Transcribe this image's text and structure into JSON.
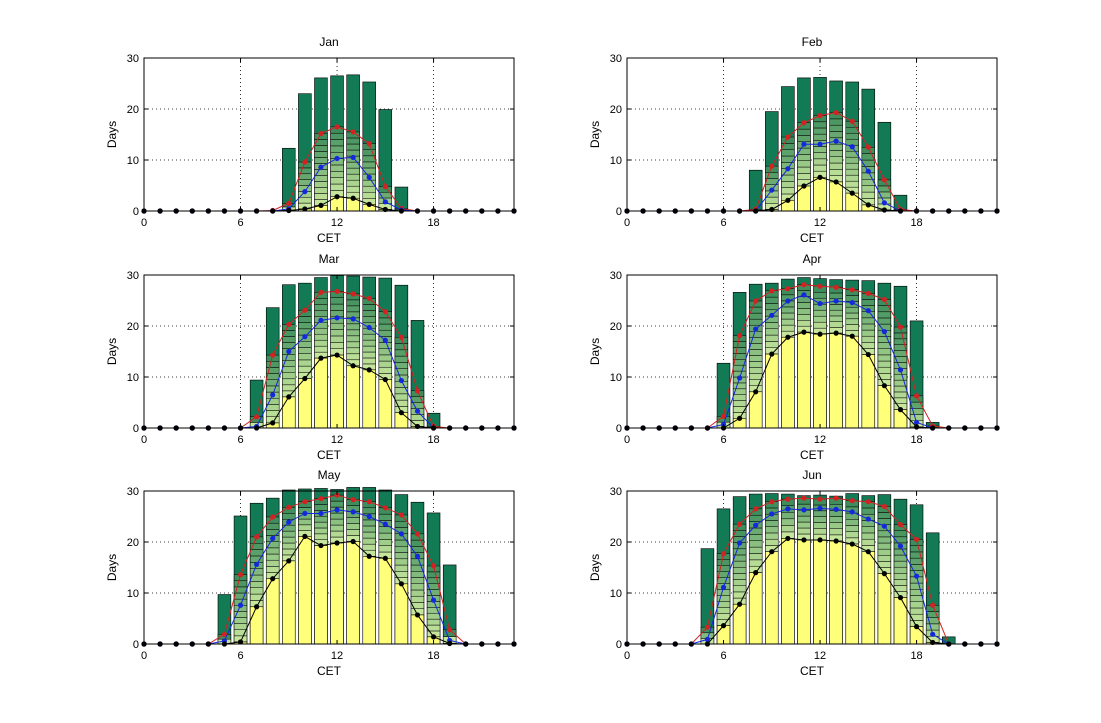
{
  "figure": {
    "xlabel": "CET",
    "ylabel": "Days",
    "xticks": [
      0,
      6,
      12,
      18
    ],
    "yticks": [
      0,
      10,
      20,
      30
    ]
  },
  "colors": {
    "bar_outer": "#127A55",
    "bar_outer_edge": "#000000",
    "band_light": "#C6E69C",
    "band_mid": "#7FB96E",
    "band_dark": "#3E8E5D",
    "bar_inner": "#FFFF7A",
    "line_red": "#D22222",
    "line_blue": "#1428DC",
    "line_black": "#000000"
  },
  "chart_data": [
    {
      "type": "bar",
      "title": "Jan",
      "xlim": [
        0,
        23
      ],
      "ylim": [
        0,
        30
      ],
      "x": [
        0,
        1,
        2,
        3,
        4,
        5,
        6,
        7,
        8,
        9,
        10,
        11,
        12,
        13,
        14,
        15,
        16,
        17,
        18,
        19,
        20,
        21,
        22,
        23
      ],
      "series": [
        {
          "values": [
            0,
            0,
            0,
            0,
            0,
            0,
            0,
            0,
            0,
            12.3,
            23,
            26.1,
            26.5,
            26.7,
            25.3,
            19.9,
            4.7,
            0,
            0,
            0,
            0,
            0,
            0,
            0
          ]
        },
        {
          "values": [
            0,
            0,
            0,
            0,
            0,
            0,
            0,
            0,
            0.1,
            1.5,
            9.6,
            15.2,
            16.5,
            15.5,
            13.2,
            4.8,
            0.5,
            0,
            0,
            0,
            0,
            0,
            0,
            0
          ]
        },
        {
          "values": [
            0,
            0,
            0,
            0,
            0,
            0,
            0,
            0,
            0,
            0.4,
            3.8,
            8.6,
            10.3,
            10.5,
            6.6,
            1.8,
            0.2,
            0,
            0,
            0,
            0,
            0,
            0,
            0
          ]
        },
        {
          "values": [
            0,
            0,
            0,
            0,
            0,
            0,
            0,
            0,
            0,
            0.1,
            0.4,
            1.1,
            2.8,
            2.5,
            1.3,
            0.3,
            0,
            0,
            0,
            0,
            0,
            0,
            0,
            0
          ]
        }
      ]
    },
    {
      "type": "bar",
      "title": "Feb",
      "xlim": [
        0,
        23
      ],
      "ylim": [
        0,
        30
      ],
      "x": [
        0,
        1,
        2,
        3,
        4,
        5,
        6,
        7,
        8,
        9,
        10,
        11,
        12,
        13,
        14,
        15,
        16,
        17,
        18,
        19,
        20,
        21,
        22,
        23
      ],
      "series": [
        {
          "values": [
            0,
            0,
            0,
            0,
            0,
            0,
            0,
            0,
            8,
            19.5,
            24.4,
            26.1,
            26.2,
            25.5,
            25.3,
            23.9,
            17.4,
            3.1,
            0,
            0,
            0,
            0,
            0,
            0
          ]
        },
        {
          "values": [
            0,
            0,
            0,
            0,
            0,
            0,
            0,
            0,
            0.3,
            8.8,
            14.5,
            17.3,
            18.7,
            19.3,
            17.6,
            12.5,
            6.1,
            0.3,
            0,
            0,
            0,
            0,
            0,
            0
          ]
        },
        {
          "values": [
            0,
            0,
            0,
            0,
            0,
            0,
            0,
            0,
            0,
            4.1,
            8.3,
            13.1,
            13.1,
            13.7,
            12.6,
            7.8,
            1.6,
            0,
            0,
            0,
            0,
            0,
            0,
            0
          ]
        },
        {
          "values": [
            0,
            0,
            0,
            0,
            0,
            0,
            0,
            0,
            0,
            0.3,
            2.1,
            4.9,
            6.6,
            5.7,
            3.5,
            1.2,
            0.2,
            0,
            0,
            0,
            0,
            0,
            0,
            0
          ]
        }
      ]
    },
    {
      "type": "bar",
      "title": "Mar",
      "xlim": [
        0,
        23
      ],
      "ylim": [
        0,
        30
      ],
      "x": [
        0,
        1,
        2,
        3,
        4,
        5,
        6,
        7,
        8,
        9,
        10,
        11,
        12,
        13,
        14,
        15,
        16,
        17,
        18,
        19,
        20,
        21,
        22,
        23
      ],
      "series": [
        {
          "values": [
            0,
            0,
            0,
            0,
            0,
            0,
            0,
            9.4,
            23.6,
            28.1,
            28.4,
            29.5,
            29.9,
            29.8,
            29.6,
            29.4,
            28,
            21.1,
            2.9,
            0,
            0,
            0,
            0,
            0
          ]
        },
        {
          "values": [
            0,
            0,
            0,
            0,
            0,
            0,
            0,
            2.2,
            14.3,
            20.3,
            23.1,
            26.6,
            26.8,
            26.3,
            25.4,
            22.8,
            17.8,
            7.3,
            0.3,
            0,
            0,
            0,
            0,
            0
          ]
        },
        {
          "values": [
            0,
            0,
            0,
            0,
            0,
            0,
            0,
            0.3,
            6.5,
            15,
            17.9,
            21.1,
            21.6,
            21.4,
            19.7,
            17.2,
            9.3,
            3.3,
            0,
            0,
            0,
            0,
            0,
            0
          ]
        },
        {
          "values": [
            0,
            0,
            0,
            0,
            0,
            0,
            0,
            0,
            1,
            6.1,
            9.7,
            13.7,
            14.3,
            12.2,
            11.4,
            9.5,
            3,
            0.3,
            0,
            0,
            0,
            0,
            0,
            0
          ]
        }
      ]
    },
    {
      "type": "bar",
      "title": "Apr",
      "xlim": [
        0,
        23
      ],
      "ylim": [
        0,
        30
      ],
      "x": [
        0,
        1,
        2,
        3,
        4,
        5,
        6,
        7,
        8,
        9,
        10,
        11,
        12,
        13,
        14,
        15,
        16,
        17,
        18,
        19,
        20,
        21,
        22,
        23
      ],
      "series": [
        {
          "values": [
            0,
            0,
            0,
            0,
            0,
            0,
            12.7,
            26.6,
            28.2,
            28.4,
            29.2,
            29.5,
            29.3,
            29.1,
            29,
            28.9,
            28.4,
            27.8,
            21,
            1.1,
            0,
            0,
            0,
            0
          ]
        },
        {
          "values": [
            0,
            0,
            0,
            0,
            0,
            0,
            2.3,
            18.1,
            24.9,
            26.9,
            27.3,
            28.1,
            27.8,
            27.6,
            27.1,
            26.4,
            25.2,
            19.8,
            6.3,
            0.4,
            0,
            0,
            0,
            0
          ]
        },
        {
          "values": [
            0,
            0,
            0,
            0,
            0,
            0,
            0.7,
            9.8,
            19.4,
            22.1,
            24.9,
            26.1,
            24.4,
            24.9,
            24.6,
            23,
            18.9,
            11.4,
            1.1,
            0,
            0,
            0,
            0,
            0
          ]
        },
        {
          "values": [
            0,
            0,
            0,
            0,
            0,
            0,
            0,
            1.9,
            7.1,
            14.5,
            17.8,
            18.8,
            18.4,
            18.6,
            18,
            14.4,
            8.3,
            3.6,
            0.2,
            0,
            0,
            0,
            0,
            0
          ]
        }
      ]
    },
    {
      "type": "bar",
      "title": "May",
      "xlim": [
        0,
        23
      ],
      "ylim": [
        0,
        30
      ],
      "x": [
        0,
        1,
        2,
        3,
        4,
        5,
        6,
        7,
        8,
        9,
        10,
        11,
        12,
        13,
        14,
        15,
        16,
        17,
        18,
        19,
        20,
        21,
        22,
        23
      ],
      "series": [
        {
          "values": [
            0,
            0,
            0,
            0,
            0,
            9.7,
            25.1,
            27.6,
            28.6,
            30.2,
            30.4,
            30.5,
            30.3,
            30.7,
            30.7,
            30.2,
            29.3,
            27.8,
            25.7,
            15.5,
            0,
            0,
            0,
            0
          ]
        },
        {
          "values": [
            0,
            0,
            0,
            0,
            0,
            1.9,
            13.6,
            21,
            24.9,
            26.8,
            27.9,
            28.5,
            29.2,
            28.3,
            27.9,
            26.7,
            25.3,
            21.6,
            15.3,
            2.8,
            0,
            0,
            0,
            0
          ]
        },
        {
          "values": [
            0,
            0,
            0,
            0,
            0,
            0.6,
            7.6,
            15.6,
            20.7,
            23.9,
            25.6,
            25.6,
            26.3,
            25.9,
            25,
            23.5,
            21.6,
            17.2,
            8.6,
            0.7,
            0,
            0,
            0,
            0
          ]
        },
        {
          "values": [
            0,
            0,
            0,
            0,
            0,
            0,
            0.4,
            7.3,
            12.8,
            16.3,
            21.1,
            19.3,
            19.8,
            20.1,
            17.2,
            16.8,
            11.8,
            5.7,
            1.4,
            0.1,
            0,
            0,
            0,
            0
          ]
        }
      ]
    },
    {
      "type": "bar",
      "title": "Jun",
      "xlim": [
        0,
        23
      ],
      "ylim": [
        0,
        30
      ],
      "x": [
        0,
        1,
        2,
        3,
        4,
        5,
        6,
        7,
        8,
        9,
        10,
        11,
        12,
        13,
        14,
        15,
        16,
        17,
        18,
        19,
        20,
        21,
        22,
        23
      ],
      "series": [
        {
          "values": [
            0,
            0,
            0,
            0,
            0,
            18.7,
            26.5,
            28.9,
            29.4,
            29.5,
            29.4,
            29.1,
            29.2,
            29,
            29.5,
            29.1,
            29.3,
            28.4,
            27.3,
            21.8,
            1.4,
            0,
            0,
            0
          ]
        },
        {
          "values": [
            0,
            0,
            0,
            0,
            0,
            3.3,
            17.7,
            23.5,
            26.5,
            27.9,
            28.4,
            28.6,
            28.4,
            28.6,
            28.1,
            27.9,
            27,
            23.4,
            20.5,
            7.6,
            0,
            0,
            0,
            0
          ]
        },
        {
          "values": [
            0,
            0,
            0,
            0,
            0,
            0.9,
            11.1,
            19.8,
            23.3,
            25.5,
            26.5,
            26.3,
            26.6,
            26.4,
            25.9,
            24.5,
            23.1,
            19.2,
            13.3,
            1.9,
            0,
            0,
            0,
            0
          ]
        },
        {
          "values": [
            0,
            0,
            0,
            0,
            0,
            0,
            3.6,
            7.8,
            14,
            18.1,
            20.7,
            20.4,
            20.4,
            20.2,
            19.6,
            18.1,
            13.8,
            9.1,
            3.4,
            0.3,
            0,
            0,
            0,
            0
          ]
        }
      ]
    }
  ]
}
